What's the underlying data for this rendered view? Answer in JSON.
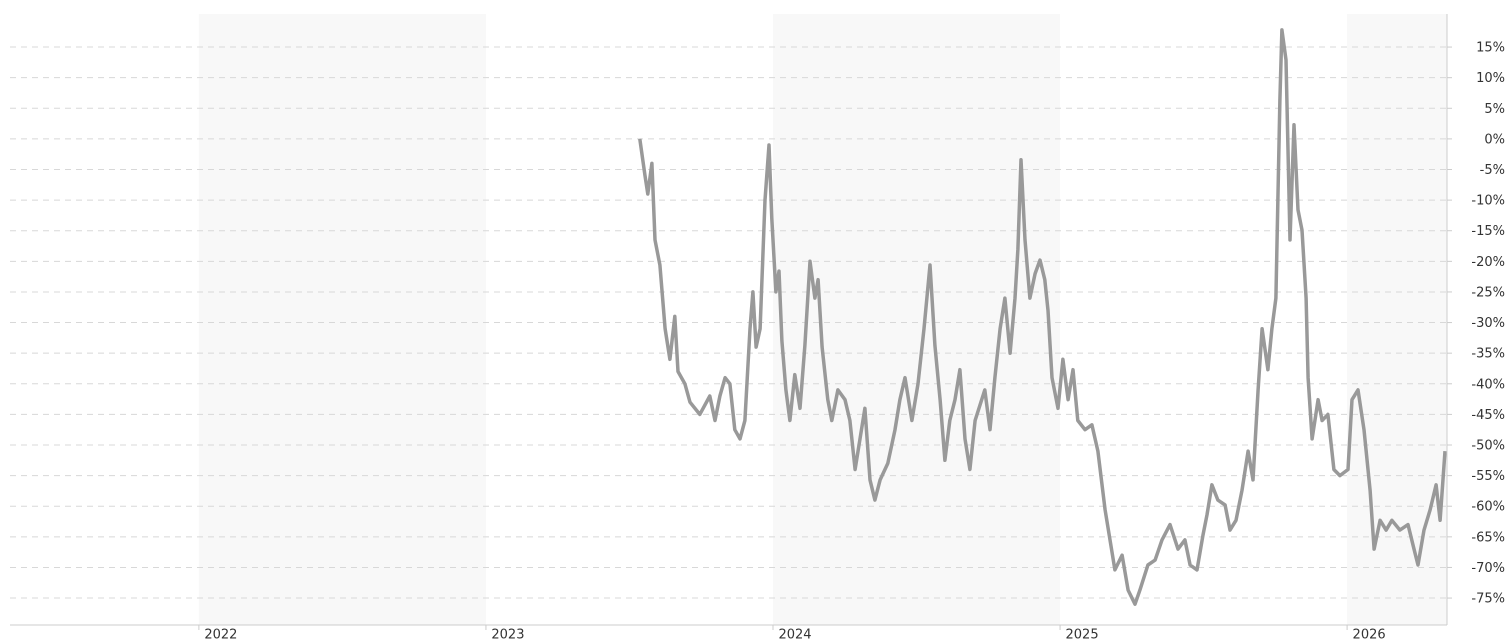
{
  "chart_data": {
    "type": "line",
    "x": [
      2023.536,
      2023.554,
      2023.564,
      2023.578,
      2023.589,
      2023.606,
      2023.624,
      2023.641,
      2023.658,
      2023.669,
      2023.693,
      2023.711,
      2023.745,
      2023.78,
      2023.798,
      2023.815,
      2023.833,
      2023.85,
      2023.867,
      2023.885,
      2023.902,
      2023.92,
      2023.93,
      2023.941,
      2023.955,
      2023.972,
      2023.986,
      2023.996,
      2024.01,
      2024.021,
      2024.031,
      2024.045,
      2024.059,
      2024.076,
      2024.094,
      2024.111,
      2024.129,
      2024.146,
      2024.157,
      2024.171,
      2024.191,
      2024.205,
      2024.226,
      2024.251,
      2024.268,
      2024.286,
      2024.303,
      2024.32,
      2024.338,
      2024.355,
      2024.373,
      2024.4,
      2024.425,
      2024.442,
      2024.46,
      2024.484,
      2024.505,
      2024.526,
      2024.547,
      2024.564,
      2024.582,
      2024.599,
      2024.616,
      2024.634,
      2024.651,
      2024.669,
      2024.686,
      2024.704,
      2024.738,
      2024.756,
      2024.773,
      2024.791,
      2024.808,
      2024.826,
      2024.843,
      2024.853,
      2024.864,
      2024.878,
      2024.895,
      2024.913,
      2024.93,
      2024.947,
      2024.958,
      2024.972,
      2024.993,
      2025.01,
      2025.028,
      2025.045,
      2025.062,
      2025.087,
      2025.111,
      2025.132,
      2025.157,
      2025.174,
      2025.191,
      2025.216,
      2025.237,
      2025.261,
      2025.278,
      2025.306,
      2025.331,
      2025.355,
      2025.383,
      2025.411,
      2025.435,
      2025.453,
      2025.477,
      2025.498,
      2025.512,
      2025.529,
      2025.55,
      2025.575,
      2025.592,
      2025.613,
      2025.634,
      2025.655,
      2025.672,
      2025.69,
      2025.704,
      2025.724,
      2025.738,
      2025.752,
      2025.766,
      2025.773,
      2025.787,
      2025.801,
      2025.815,
      2025.829,
      2025.843,
      2025.857,
      2025.864,
      2025.878,
      2025.899,
      2025.913,
      2025.933,
      2025.954,
      2025.975,
      2026.003,
      2026.017,
      2026.038,
      2026.059,
      2026.08,
      2026.094,
      2026.115,
      2026.136,
      2026.156,
      2026.184,
      2026.212,
      2026.233,
      2026.247,
      2026.268,
      2026.289,
      2026.31,
      2026.324,
      2026.341
    ],
    "series": [
      {
        "color": "#999999",
        "values": [
          0,
          -6,
          -9,
          -4,
          -16.5,
          -20.6,
          -31,
          -36,
          -29,
          -38,
          -40,
          -43,
          -45,
          -42,
          -46,
          -42,
          -39,
          -40,
          -47.5,
          -49,
          -46,
          -31,
          -25,
          -34,
          -31,
          -10,
          -1,
          -13,
          -25,
          -21.6,
          -33,
          -41,
          -46,
          -38.5,
          -44,
          -33.7,
          -20,
          -26,
          -23,
          -34,
          -42.6,
          -46,
          -41,
          -42.6,
          -46,
          -54,
          -49,
          -44,
          -55.7,
          -59,
          -55.7,
          -53,
          -47.5,
          -42.6,
          -39,
          -46,
          -40,
          -31,
          -20.6,
          -33.7,
          -42.6,
          -52.5,
          -46,
          -42.6,
          -37.7,
          -49,
          -54,
          -46,
          -41,
          -47.5,
          -39,
          -31,
          -26,
          -35,
          -26,
          -18,
          -3.4,
          -16.5,
          -26,
          -22,
          -19.8,
          -23,
          -28,
          -39,
          -44,
          -36,
          -42.6,
          -37.7,
          -46,
          -47.5,
          -46.7,
          -51,
          -60.6,
          -65.5,
          -70.4,
          -68,
          -73.7,
          -76,
          -73.7,
          -69.6,
          -68.8,
          -65.5,
          -63,
          -67,
          -65.5,
          -69.6,
          -70.4,
          -64.7,
          -61.4,
          -56.5,
          -59,
          -59.8,
          -63.9,
          -62.3,
          -57.4,
          -51,
          -55.7,
          -41,
          -31,
          -37.7,
          -31,
          -26,
          6.4,
          17.8,
          12.9,
          -16.5,
          2.3,
          -11.6,
          -14.9,
          -26,
          -39,
          -49,
          -42.6,
          -46,
          -45,
          -54,
          -55,
          -54,
          -42.6,
          -41,
          -47.5,
          -57.4,
          -67,
          -62.3,
          -63.9,
          -62.3,
          -63.9,
          -63,
          -67,
          -69.6,
          -63.9,
          -60.6,
          -56.5,
          -62.3,
          -51
        ]
      }
    ],
    "xlim": [
      2021.342,
      2026.348
    ],
    "xticks": [
      2022,
      2023,
      2024,
      2025,
      2026
    ],
    "ylim": [
      -79.4,
      20.4
    ],
    "yticks": [
      {
        "value": 15,
        "label": "15%"
      },
      {
        "value": 10,
        "label": "10%"
      },
      {
        "value": 5,
        "label": "5%"
      },
      {
        "value": 0,
        "label": "0%"
      },
      {
        "value": -5,
        "label": "-5%"
      },
      {
        "value": -10,
        "label": "-10%"
      },
      {
        "value": -15,
        "label": "-15%"
      },
      {
        "value": -20,
        "label": "-20%"
      },
      {
        "value": -25,
        "label": "-25%"
      },
      {
        "value": -30,
        "label": "-30%"
      },
      {
        "value": -35,
        "label": "-35%"
      },
      {
        "value": -40,
        "label": "-40%"
      },
      {
        "value": -45,
        "label": "-45%"
      },
      {
        "value": -50,
        "label": "-50%"
      },
      {
        "value": -55,
        "label": "-55%"
      },
      {
        "value": -60,
        "label": "-60%"
      },
      {
        "value": -65,
        "label": "-65%"
      },
      {
        "value": -70,
        "label": "-70%"
      },
      {
        "value": -75,
        "label": "-75%"
      }
    ],
    "grid": true
  }
}
